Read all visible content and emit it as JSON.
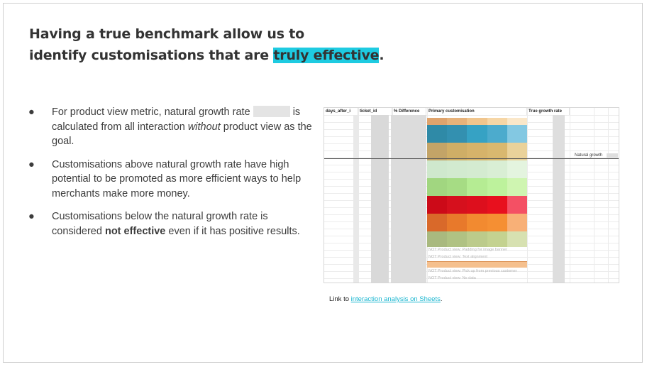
{
  "title": {
    "line1": "Having a true benchmark allow us to",
    "line2_prefix": "identify customisations that are ",
    "highlight": "truly effective",
    "line2_suffix": "."
  },
  "bullets": [
    {
      "a": "For product view metric, natural growth rate",
      "b": "is calculated from all interaction ",
      "em": "without",
      "c": " product view as the goal."
    },
    {
      "text": "Customisations above natural growth rate have high potential to be promoted as more efficient ways to help merchants make more money."
    },
    {
      "a": "Customisations below the natural growth rate is considered ",
      "strong": "not effective",
      "c": " even if it has positive results."
    }
  ],
  "sheet": {
    "headers": [
      "days_after_i",
      "ticket_id",
      "% Difference",
      "Primary customisation",
      "True growth rate"
    ],
    "heat_rows": [
      [
        "#dfa36c",
        "#e7b27a",
        "#f0c58d",
        "#f6d6a6",
        "#fae7c9"
      ],
      [
        "#2f8aa7",
        "#3390b0",
        "#36a2c4",
        "#4cabcd",
        "#83c8e2"
      ],
      [
        "#c3a467",
        "#cfae66",
        "#d6b36a",
        "#d9b86f",
        "#ead29a"
      ],
      [
        "#cfe8cd",
        "#d2eacf",
        "#d4ebd0",
        "#d9eed4",
        "#e4f4df"
      ],
      [
        "#a1d680",
        "#a6dc84",
        "#b5ec93",
        "#bdf29c",
        "#cff5b1"
      ],
      [
        "#cc0a18",
        "#d6101d",
        "#dd0f1d",
        "#e8101e",
        "#f45064"
      ],
      [
        "#d9692a",
        "#e8792b",
        "#f28a30",
        "#f58f33",
        "#f8b077"
      ],
      [
        "#a9b97f",
        "#b0c283",
        "#bccb8b",
        "#c4d290",
        "#d7e1b1"
      ]
    ],
    "not_rows": [
      "NOT Product view: Padding for image banner",
      "NOT Product view: Text alignment",
      "",
      "NOT Product view: Pick up from previous customer",
      "NOT Product view: No data"
    ],
    "natural_growth_label": "Natural growth"
  },
  "link": {
    "prefix": "Link to ",
    "text": "interaction analysis on Sheets",
    "suffix": "."
  }
}
